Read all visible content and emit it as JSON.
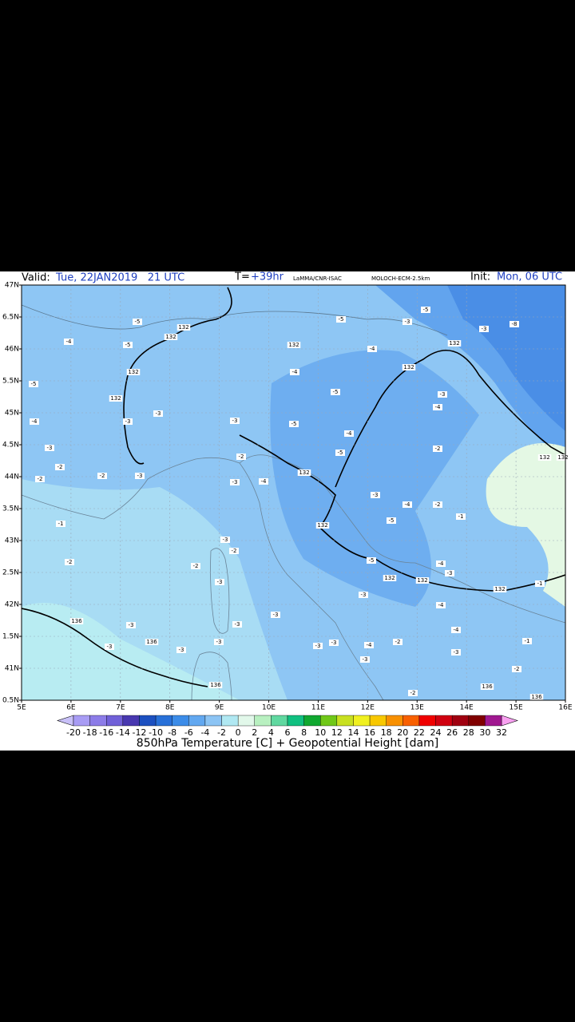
{
  "header": {
    "valid_label": "Valid:",
    "valid": "Tue, 22JAN2019   21 UTC",
    "t_label": "T=",
    "t": "+39hr",
    "source": "LaMMA/CNR-ISAC",
    "model": "MOLOCH-ECM-2.5km",
    "init_label": "Init:",
    "init": "Mon, 06 UTC"
  },
  "map": {
    "lat_labels": [
      "47N",
      "6.5N",
      "46N",
      "5.5N",
      "45N",
      "4.5N",
      "44N",
      "3.5N",
      "43N",
      "2.5N",
      "42N",
      "1.5N",
      "41N",
      "0.5N"
    ],
    "lon_labels": [
      "5E",
      "6E",
      "7E",
      "8E",
      "9E",
      "10E",
      "11E",
      "12E",
      "13E",
      "14E",
      "15E",
      "16E"
    ],
    "contour_labels": [
      "-5",
      "-5",
      "-4",
      "-5",
      "-4",
      "-3",
      "-2",
      "-2",
      "-2",
      "-3",
      "-3",
      "-3",
      "132",
      "132",
      "132",
      "132",
      "-5",
      "-4",
      "132",
      "-4",
      "-5",
      "-5",
      "-4",
      "-5",
      "-3",
      "-3",
      "-4",
      "-2",
      "132",
      "132",
      "-3",
      "-4",
      "-5",
      "-2",
      "-1",
      "-2",
      "-4",
      "-3",
      "-5",
      "-3",
      "-3",
      "-8",
      "132",
      "132",
      "-3",
      "-2",
      "-2",
      "-1",
      "-2",
      "-3",
      "136",
      "-3",
      "-3",
      "136",
      "-3",
      "-3",
      "-3",
      "-3",
      "-3",
      "132",
      "-5",
      "132",
      "-3",
      "-4",
      "132",
      "-1",
      "-4",
      "-4",
      "-3",
      "-3",
      "-4",
      "-2",
      "-3",
      "-3",
      "-2",
      "136",
      "136",
      "136",
      "-2",
      "-1",
      "132",
      "132"
    ]
  },
  "colorbar": {
    "labels": [
      "-20",
      "-18",
      "-16",
      "-14",
      "-12",
      "-10",
      "-8",
      "-6",
      "-4",
      "-2",
      "0",
      "2",
      "4",
      "6",
      "8",
      "10",
      "12",
      "14",
      "16",
      "18",
      "20",
      "22",
      "24",
      "26",
      "28",
      "30",
      "32"
    ],
    "colors": [
      "#a89cf4",
      "#8c7ce8",
      "#7060d8",
      "#4838b0",
      "#1c50c0",
      "#2870d8",
      "#3c8ce8",
      "#62a8f0",
      "#8cc4f4",
      "#b0e8f2",
      "#e2f8ea",
      "#b8f0c0",
      "#60d8a0",
      "#10c080",
      "#10a830",
      "#70c818",
      "#c8e020",
      "#f0f020",
      "#f8c800",
      "#f89000",
      "#f86000",
      "#f00000",
      "#d00010",
      "#a00010",
      "#800000",
      "#a01890"
    ],
    "low_color": "#c8c0f8",
    "high_color": "#f8a0f0",
    "caption": "850hPa Temperature [C] + Geopotential Height [dam]"
  }
}
